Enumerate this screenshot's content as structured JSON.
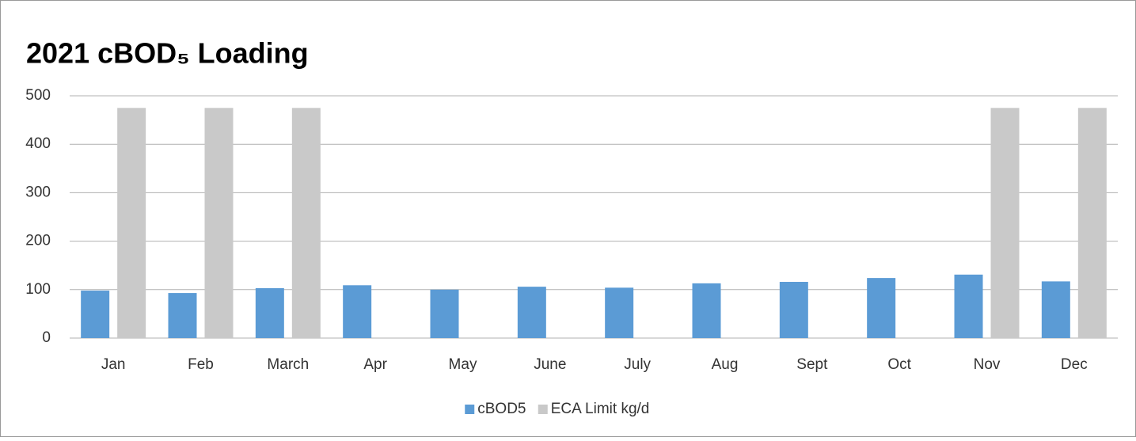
{
  "chart_data": {
    "type": "bar",
    "title": "2021 cBOD₅ Loading",
    "categories": [
      "Jan",
      "Feb",
      "March",
      "Apr",
      "May",
      "June",
      "July",
      "Aug",
      "Sept",
      "Oct",
      "Nov",
      "Dec"
    ],
    "series": [
      {
        "name": "cBOD5",
        "color": "#5b9bd5",
        "values": [
          98,
          93,
          103,
          109,
          100,
          106,
          104,
          113,
          116,
          124,
          131,
          117
        ]
      },
      {
        "name": "ECA Limit kg/d",
        "color": "#c9c9c9",
        "values": [
          475,
          475,
          475,
          null,
          null,
          null,
          null,
          null,
          null,
          null,
          475,
          475
        ]
      }
    ],
    "ylim": [
      0,
      500
    ],
    "yticks": [
      0,
      100,
      200,
      300,
      400,
      500
    ],
    "grid": true,
    "legend": "bottom"
  }
}
